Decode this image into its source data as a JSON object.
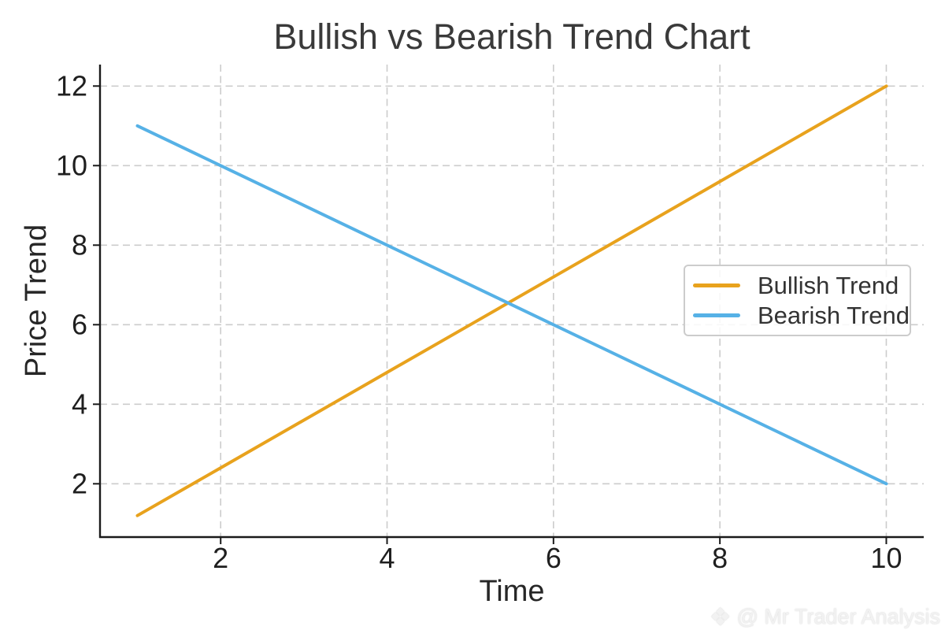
{
  "figure": {
    "background": "#ffffff",
    "title_color": "#3a3a3a"
  },
  "watermark": {
    "icon": "diamond-logo-icon",
    "icon_glyph": "❖",
    "text": "@ Mr Trader Analysis",
    "color": "#f2f2f2"
  },
  "chart_data": {
    "type": "line",
    "title": "Bullish vs Bearish Trend Chart",
    "xlabel": "Time",
    "ylabel": "Price Trend",
    "x": [
      1,
      2,
      3,
      4,
      5,
      6,
      7,
      8,
      9,
      10
    ],
    "series": [
      {
        "name": "Bullish Trend",
        "color": "#E8A21D",
        "values": [
          1.2,
          2.4,
          3.6,
          4.8,
          6.0,
          7.2,
          8.4,
          9.6,
          10.8,
          12.0
        ]
      },
      {
        "name": "Bearish Trend",
        "color": "#56B1E6",
        "values": [
          11,
          10,
          9,
          8,
          7,
          6,
          5,
          4,
          3,
          2
        ]
      }
    ],
    "xticks": [
      2,
      4,
      6,
      8,
      10
    ],
    "yticks": [
      2,
      4,
      6,
      8,
      10,
      12
    ],
    "xlim": [
      0.55,
      10.45
    ],
    "ylim": [
      0.66,
      12.54
    ],
    "grid": true,
    "grid_color": "#cccccc",
    "grid_style": "dashed",
    "line_width": 4,
    "spine_color": "#1a1a1a",
    "legend_position": "center-right"
  }
}
